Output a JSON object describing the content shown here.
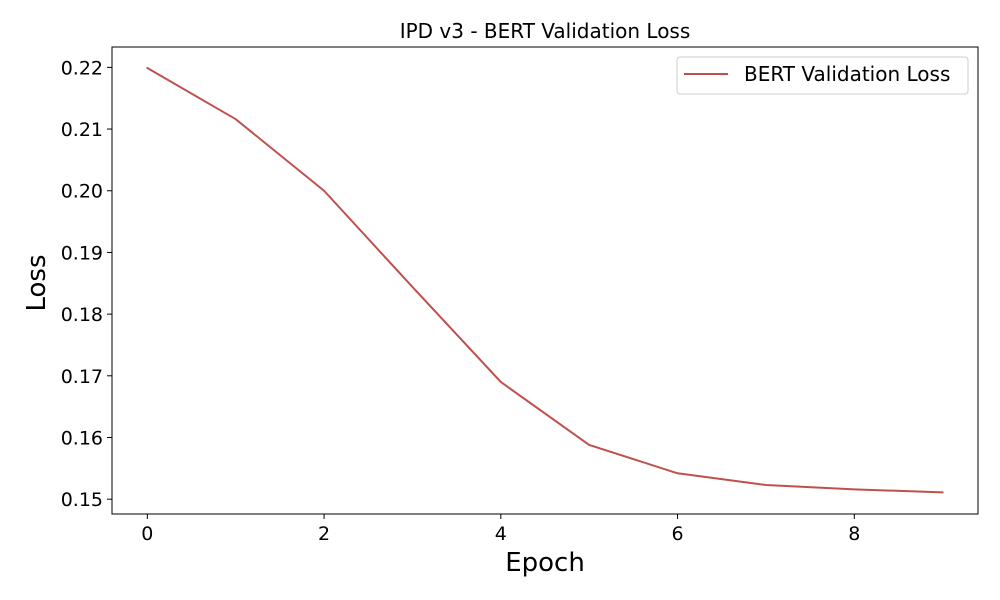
{
  "chart_data": {
    "type": "line",
    "title": "IPD v3 - BERT Validation Loss",
    "xlabel": "Epoch",
    "ylabel": "Loss",
    "xlim": [
      -0.4,
      9.4
    ],
    "ylim": [
      0.1476,
      0.2233
    ],
    "xticks": [
      0,
      2,
      4,
      6,
      8
    ],
    "yticks": [
      0.15,
      0.16,
      0.17,
      0.18,
      0.19,
      0.2,
      0.21,
      0.22
    ],
    "ytick_labels": [
      "0.15",
      "0.16",
      "0.17",
      "0.18",
      "0.19",
      "0.20",
      "0.21",
      "0.22"
    ],
    "grid": false,
    "legend_position": "top-right",
    "series": [
      {
        "name": "BERT Validation Loss",
        "color": "#c0504d",
        "x": [
          0,
          1,
          2,
          3,
          4,
          5,
          6,
          7,
          8,
          9
        ],
        "y": [
          0.2199,
          0.2116,
          0.2,
          0.1844,
          0.169,
          0.1588,
          0.1542,
          0.1523,
          0.1516,
          0.1511
        ]
      }
    ]
  }
}
